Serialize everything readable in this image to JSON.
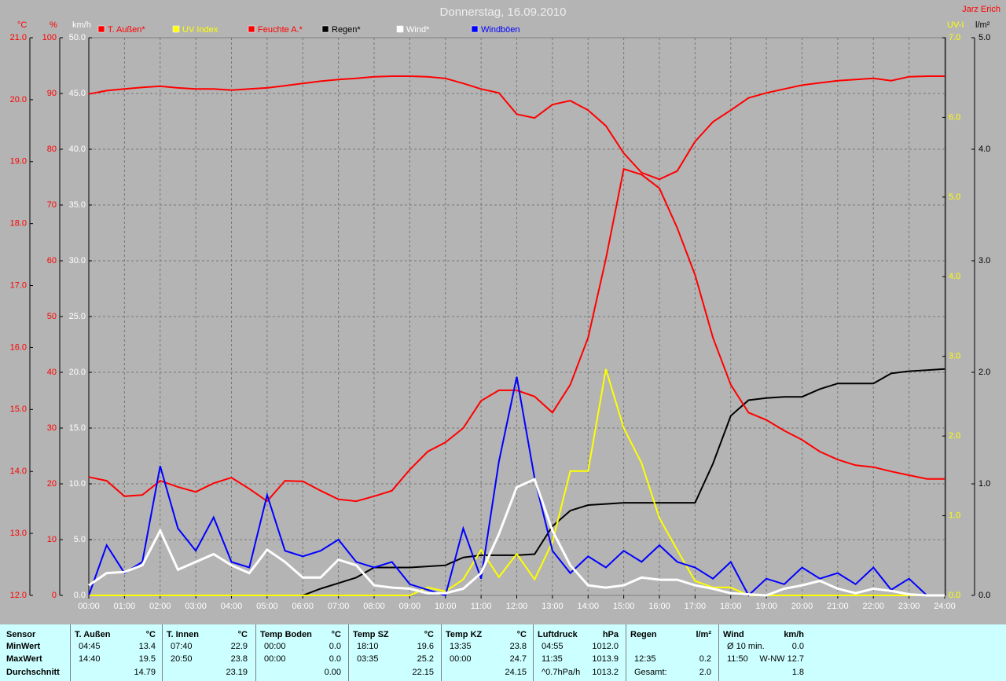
{
  "chart_data": {
    "type": "line",
    "title": "Donnerstag, 16.09.2010",
    "author": "Jarz Erich",
    "x": [
      0,
      0.5,
      1,
      1.5,
      2,
      2.5,
      3,
      3.5,
      4,
      4.5,
      5,
      5.5,
      6,
      6.5,
      7,
      7.5,
      8,
      8.5,
      9,
      9.5,
      10,
      10.5,
      11,
      11.5,
      12,
      12.5,
      13,
      13.5,
      14,
      14.5,
      15,
      15.5,
      16,
      16.5,
      17,
      17.5,
      18,
      18.5,
      19,
      19.5,
      20,
      20.5,
      21,
      21.5,
      22,
      22.5,
      23,
      23.5,
      24
    ],
    "xlim": [
      0,
      24
    ],
    "xticks": [
      {
        "value": 0,
        "label": "00:00"
      },
      {
        "value": 1,
        "label": "01:00"
      },
      {
        "value": 2,
        "label": "02:00"
      },
      {
        "value": 3,
        "label": "03:00"
      },
      {
        "value": 4,
        "label": "04:00"
      },
      {
        "value": 5,
        "label": "05:00"
      },
      {
        "value": 6,
        "label": "06:00"
      },
      {
        "value": 7,
        "label": "07:00"
      },
      {
        "value": 8,
        "label": "08:00"
      },
      {
        "value": 9,
        "label": "09:00"
      },
      {
        "value": 10,
        "label": "10:00"
      },
      {
        "value": 11,
        "label": "11:00"
      },
      {
        "value": 12,
        "label": "12:00"
      },
      {
        "value": 13,
        "label": "13:00"
      },
      {
        "value": 14,
        "label": "14:00"
      },
      {
        "value": 15,
        "label": "15:00"
      },
      {
        "value": 16,
        "label": "16:00"
      },
      {
        "value": 17,
        "label": "17:00"
      },
      {
        "value": 18,
        "label": "18:00"
      },
      {
        "value": 19,
        "label": "19:00"
      },
      {
        "value": 20,
        "label": "20:00"
      },
      {
        "value": 21,
        "label": "21:00"
      },
      {
        "value": 22,
        "label": "22:00"
      },
      {
        "value": 23,
        "label": "23:00"
      },
      {
        "value": 24,
        "label": "24:00"
      }
    ],
    "grid": true,
    "axes": [
      {
        "label": "°C",
        "color": "#ff0000",
        "lim": [
          12,
          21
        ],
        "ticks": [
          {
            "value": 12,
            "label": "12.0"
          },
          {
            "value": 13,
            "label": "13.0"
          },
          {
            "value": 14,
            "label": "14.0"
          },
          {
            "value": 15,
            "label": "15.0"
          },
          {
            "value": 16,
            "label": "16.0"
          },
          {
            "value": 17,
            "label": "17.0"
          },
          {
            "value": 18,
            "label": "18.0"
          },
          {
            "value": 19,
            "label": "19.0"
          },
          {
            "value": 20,
            "label": "20.0"
          },
          {
            "value": 21,
            "label": "21.0"
          }
        ]
      },
      {
        "label": "%",
        "color": "#ff0000",
        "lim": [
          0,
          100
        ],
        "ticks": [
          0,
          10,
          20,
          30,
          40,
          50,
          60,
          70,
          80,
          90,
          100
        ]
      },
      {
        "label": "km/h",
        "color": "#ffffff",
        "grid": true,
        "lim": [
          0,
          50
        ],
        "ticks": [
          {
            "value": 0,
            "label": "0.0"
          },
          {
            "value": 5,
            "label": "5.0"
          },
          {
            "value": 10,
            "label": "10.0"
          },
          {
            "value": 15,
            "label": "15.0"
          },
          {
            "value": 20,
            "label": "20.0"
          },
          {
            "value": 25,
            "label": "25.0"
          },
          {
            "value": 30,
            "label": "30.0"
          },
          {
            "value": 35,
            "label": "35.0"
          },
          {
            "value": 40,
            "label": "40.0"
          },
          {
            "value": 45,
            "label": "45.0"
          },
          {
            "value": 50,
            "label": "50.0"
          }
        ]
      },
      {
        "label": "UV-I",
        "color": "#ffff00",
        "lim": [
          0,
          7
        ],
        "ticks": [
          {
            "value": 0,
            "label": "0.0"
          },
          {
            "value": 1,
            "label": "1.0"
          },
          {
            "value": 2,
            "label": "2.0"
          },
          {
            "value": 3,
            "label": "3.0"
          },
          {
            "value": 4,
            "label": "4.0"
          },
          {
            "value": 5,
            "label": "5.0"
          },
          {
            "value": 6,
            "label": "6.0"
          },
          {
            "value": 7,
            "label": "7.0"
          }
        ]
      },
      {
        "label": "l/m²",
        "color": "#000000",
        "lim": [
          0,
          5
        ],
        "ticks": [
          {
            "value": 0,
            "label": "0.0"
          },
          {
            "value": 1,
            "label": "1.0"
          },
          {
            "value": 2,
            "label": "2.0"
          },
          {
            "value": 3,
            "label": "3.0"
          },
          {
            "value": 4,
            "label": "4.0"
          },
          {
            "value": 5,
            "label": "5.0"
          }
        ]
      }
    ],
    "series": [
      {
        "name": "T. Außen*",
        "color": "#ff0000",
        "axis": 0,
        "values": [
          13.91,
          13.85,
          13.6,
          13.62,
          13.85,
          13.75,
          13.67,
          13.81,
          13.9,
          13.72,
          13.52,
          13.85,
          13.84,
          13.69,
          13.55,
          13.52,
          13.6,
          13.69,
          14.03,
          14.32,
          14.47,
          14.7,
          15.14,
          15.31,
          15.31,
          15.21,
          14.95,
          15.4,
          16.16,
          17.43,
          18.88,
          18.79,
          18.57,
          17.93,
          17.17,
          16.16,
          15.4,
          14.95,
          14.83,
          14.66,
          14.51,
          14.32,
          14.19,
          14.1,
          14.07,
          14,
          13.94,
          13.88,
          13.88
        ]
      },
      {
        "name": "UV Index",
        "color": "#ffff00",
        "axis": 3,
        "values": [
          0,
          0,
          0,
          0,
          0,
          0,
          0,
          0,
          0,
          0,
          0,
          0,
          0,
          0,
          0,
          0,
          0,
          0,
          0,
          0.1,
          0.05,
          0.2,
          0.57,
          0.23,
          0.52,
          0.2,
          0.67,
          1.56,
          1.56,
          2.84,
          2.1,
          1.66,
          0.97,
          0.57,
          0.18,
          0.1,
          0.1,
          0,
          0,
          0,
          0,
          0,
          0,
          0,
          0,
          0,
          0,
          0,
          0
        ]
      },
      {
        "name": "Feuchte A.*",
        "color": "#ff0000",
        "axis": 1,
        "values": [
          89.9,
          90.5,
          90.8,
          91.1,
          91.3,
          91.0,
          90.8,
          90.8,
          90.6,
          90.8,
          91.0,
          91.4,
          91.8,
          92.2,
          92.5,
          92.7,
          93.0,
          93.1,
          93.1,
          93.0,
          92.7,
          91.8,
          90.8,
          90.1,
          86.3,
          85.6,
          88.0,
          88.7,
          87.0,
          84.2,
          79.3,
          75.8,
          74.6,
          76.1,
          81.4,
          84.9,
          87.0,
          89.2,
          90.1,
          90.8,
          91.5,
          91.9,
          92.3,
          92.5,
          92.7,
          92.3,
          93.0,
          93.1,
          93.1
        ]
      },
      {
        "name": "Regen*",
        "color": "#000000",
        "axis": 4,
        "values": [
          0,
          0,
          0,
          0,
          0,
          0,
          0,
          0,
          0,
          0,
          0,
          0,
          0,
          0.06,
          0.11,
          0.16,
          0.25,
          0.25,
          0.25,
          0.26,
          0.27,
          0.34,
          0.36,
          0.36,
          0.36,
          0.37,
          0.62,
          0.76,
          0.81,
          0.82,
          0.83,
          0.83,
          0.83,
          0.83,
          0.83,
          1.18,
          1.61,
          1.75,
          1.77,
          1.78,
          1.78,
          1.85,
          1.9,
          1.9,
          1.9,
          1.99,
          2.01,
          2.02,
          2.03
        ]
      },
      {
        "name": "Wind*",
        "color": "#ffffff",
        "axis": 2,
        "values": [
          0.9,
          2.0,
          2.1,
          2.7,
          5.8,
          2.3,
          3.0,
          3.7,
          2.7,
          2.0,
          4.1,
          3.0,
          1.6,
          1.6,
          3.2,
          2.7,
          0.9,
          0.7,
          0.6,
          0.2,
          0.2,
          0.6,
          2.0,
          5.5,
          9.7,
          10.4,
          5.8,
          2.7,
          0.9,
          0.7,
          0.9,
          1.6,
          1.4,
          1.4,
          0.9,
          0.6,
          0.2,
          0.1,
          0,
          0.6,
          0.9,
          1.3,
          0.6,
          0.2,
          0.6,
          0.4,
          0.1,
          0,
          0
        ]
      },
      {
        "name": "Windböen",
        "color": "#0000ff",
        "axis": 2,
        "values": [
          0,
          4.5,
          2.0,
          3.0,
          11.6,
          6.0,
          4.0,
          7.0,
          3.0,
          2.5,
          9.0,
          4.0,
          3.5,
          4.0,
          5.0,
          3.0,
          2.5,
          3.0,
          1.0,
          0.5,
          0,
          6.0,
          1.5,
          12.0,
          19.6,
          10.5,
          4.0,
          2.0,
          3.5,
          2.5,
          4.0,
          3.0,
          4.5,
          3.0,
          2.5,
          1.5,
          3.0,
          0,
          1.5,
          1.0,
          2.5,
          1.5,
          2.0,
          1.0,
          2.5,
          0.5,
          1.5,
          0,
          0
        ]
      }
    ]
  },
  "table": {
    "columns": [
      {
        "name": "Sensor"
      },
      {
        "name": "T. Außen",
        "unit": "°C"
      },
      {
        "name": "T. Innen",
        "unit": "°C"
      },
      {
        "name": "Temp Boden",
        "unit": "°C"
      },
      {
        "name": "Temp SZ",
        "unit": "°C"
      },
      {
        "name": "Temp KZ",
        "unit": "°C"
      },
      {
        "name": "Luftdruck",
        "unit": "hPa"
      },
      {
        "name": "Regen",
        "unit": "l/m²"
      },
      {
        "name": "Wind",
        "unit": "km/h"
      }
    ],
    "rows": [
      {
        "label": "MinWert",
        "cells": [
          {
            "time": "04:45",
            "value": "13.4"
          },
          {
            "time": "07:40",
            "value": "22.9"
          },
          {
            "time": "00:00",
            "value": "0.0"
          },
          {
            "time": "18:10",
            "value": "19.6"
          },
          {
            "time": "13:35",
            "value": "23.8"
          },
          {
            "time": "04:55",
            "value": "1012.0"
          },
          null,
          {
            "time": "Ø 10 min.",
            "value": "0.0"
          }
        ]
      },
      {
        "label": "MaxWert",
        "cells": [
          {
            "time": "14:40",
            "value": "19.5"
          },
          {
            "time": "20:50",
            "value": "23.8"
          },
          {
            "time": "00:00",
            "value": "0.0"
          },
          {
            "time": "03:35",
            "value": "25.2"
          },
          {
            "time": "00:00",
            "value": "24.7"
          },
          {
            "time": "11:35",
            "value": "1013.9"
          },
          {
            "time": "12:35",
            "value": "0.2"
          },
          {
            "time": "11:50",
            "value": "W-NW 12.7"
          }
        ]
      },
      {
        "label": "Durchschnitt",
        "cells": [
          {
            "value": "14.79"
          },
          {
            "value": "23.19"
          },
          {
            "value": "0.00"
          },
          {
            "value": "22.15"
          },
          {
            "value": "24.15"
          },
          {
            "time": "^0.7hPa/h",
            "value": "1013.2"
          },
          {
            "time": "Gesamt:",
            "value": "2.0"
          },
          {
            "value": "1.8"
          }
        ]
      }
    ]
  }
}
